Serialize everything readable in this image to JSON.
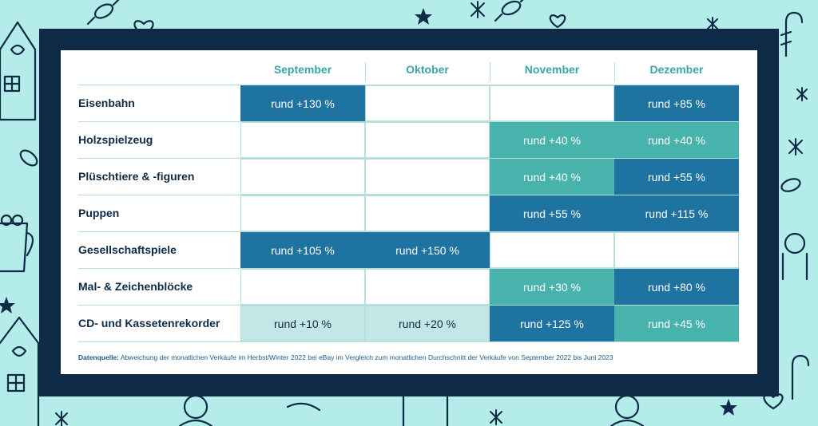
{
  "colors": {
    "background": "#b3ece9",
    "frame": "#0e2a46",
    "level_dark": "#1f73a0",
    "level_mid": "#48b3ad",
    "level_light": "#c3e6e6",
    "month_header": "#3aa5a7"
  },
  "table": {
    "months": [
      "September",
      "Oktober",
      "November",
      "Dezember"
    ],
    "rows": [
      {
        "label": "Eisenbahn",
        "cells": [
          {
            "text": "rund +130 %",
            "level": "dark"
          },
          {
            "text": "",
            "level": "none"
          },
          {
            "text": "",
            "level": "none"
          },
          {
            "text": "rund +85 %",
            "level": "dark"
          }
        ]
      },
      {
        "label": "Holzspielzeug",
        "cells": [
          {
            "text": "",
            "level": "none"
          },
          {
            "text": "",
            "level": "none"
          },
          {
            "text": "rund +40 %",
            "level": "mid"
          },
          {
            "text": "rund +40 %",
            "level": "mid"
          }
        ]
      },
      {
        "label": "Plüschtiere & -figuren",
        "cells": [
          {
            "text": "",
            "level": "none"
          },
          {
            "text": "",
            "level": "none"
          },
          {
            "text": "rund +40 %",
            "level": "mid"
          },
          {
            "text": "rund +55 %",
            "level": "dark"
          }
        ]
      },
      {
        "label": "Puppen",
        "cells": [
          {
            "text": "",
            "level": "none"
          },
          {
            "text": "",
            "level": "none"
          },
          {
            "text": "rund +55 %",
            "level": "dark"
          },
          {
            "text": "rund +115 %",
            "level": "dark"
          }
        ]
      },
      {
        "label": "Gesellschaftspiele",
        "cells": [
          {
            "text": "rund +105 %",
            "level": "dark"
          },
          {
            "text": "rund +150 %",
            "level": "dark"
          },
          {
            "text": "",
            "level": "none"
          },
          {
            "text": "",
            "level": "none"
          }
        ]
      },
      {
        "label": "Mal- & Zeichenblöcke",
        "cells": [
          {
            "text": "",
            "level": "none"
          },
          {
            "text": "",
            "level": "none"
          },
          {
            "text": "rund +30 %",
            "level": "mid"
          },
          {
            "text": "rund +80 %",
            "level": "dark"
          }
        ]
      },
      {
        "label": "CD- und Kassetenrekorder",
        "cells": [
          {
            "text": "rund +10 %",
            "level": "light"
          },
          {
            "text": "rund +20 %",
            "level": "light"
          },
          {
            "text": "rund +125 %",
            "level": "dark"
          },
          {
            "text": "rund +45 %",
            "level": "mid"
          }
        ]
      }
    ]
  },
  "footnote": {
    "label": "Datenquelle:",
    "text": " Abweichung der monatlichen Verkäufe im Herbst/Winter 2022 bei eBay im Vergleich zum monatlichen Durchschnitt der Verkäufe von September 2022 bis Juni 2023"
  },
  "decor": {
    "icons": [
      "candy-icon",
      "heart-icon",
      "star-icon",
      "gingerbread-house-icon",
      "candy-cane-icon",
      "snowflake-icon",
      "hot-cocoa-mug-icon",
      "gingerbread-man-icon"
    ]
  }
}
